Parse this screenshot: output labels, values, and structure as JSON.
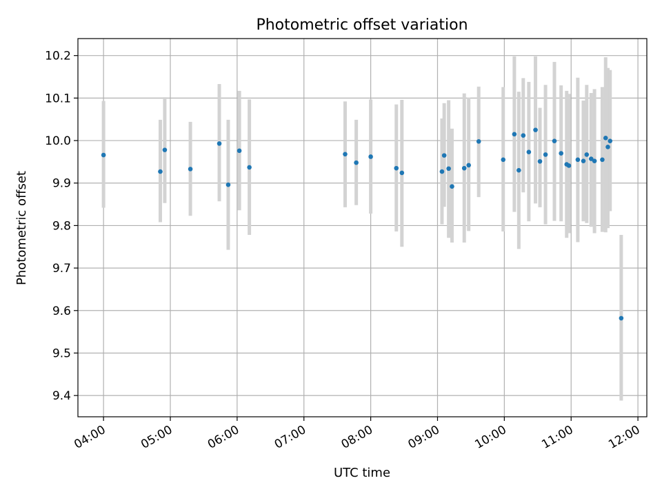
{
  "chart_data": {
    "type": "scatter",
    "title": "Photometric offset variation",
    "xlabel": "UTC time",
    "ylabel": "Photometric offset",
    "x_tick_labels": [
      "04:00",
      "05:00",
      "06:00",
      "07:00",
      "08:00",
      "09:00",
      "10:00",
      "11:00",
      "12:00"
    ],
    "y_tick_labels": [
      "9.4",
      "9.5",
      "9.6",
      "9.7",
      "9.8",
      "9.9",
      "10.0",
      "10.1",
      "10.2"
    ],
    "xlim": [
      "03:37",
      "12:08"
    ],
    "ylim": [
      9.35,
      10.24
    ],
    "grid": true,
    "colors": {
      "points": "#1f77b4",
      "error_bars": "#d3d3d3",
      "grid": "#b0b0b0"
    },
    "series": [
      {
        "x": [
          "04:00",
          "04:51",
          "04:55",
          "05:18",
          "05:44",
          "05:52",
          "06:02",
          "06:11",
          "07:37",
          "07:47",
          "08:00",
          "08:23",
          "08:28",
          "09:04",
          "09:06",
          "09:10",
          "09:13",
          "09:24",
          "09:28",
          "09:37",
          "09:59",
          "10:09",
          "10:13",
          "10:17",
          "10:22",
          "10:28",
          "10:32",
          "10:37",
          "10:45",
          "10:51",
          "10:56",
          "10:58",
          "11:06",
          "11:11",
          "11:14",
          "11:18",
          "11:21",
          "11:28",
          "11:31",
          "11:33",
          "11:35",
          "11:45"
        ],
        "y": [
          9.966,
          9.927,
          9.978,
          9.933,
          9.993,
          9.896,
          9.976,
          9.937,
          9.968,
          9.948,
          9.962,
          9.935,
          9.924,
          9.927,
          9.965,
          9.934,
          9.892,
          9.935,
          9.942,
          9.998,
          9.955,
          10.015,
          9.93,
          10.012,
          9.973,
          10.025,
          9.951,
          9.967,
          9.999,
          9.97,
          9.944,
          9.941,
          9.955,
          9.952,
          9.967,
          9.957,
          9.952,
          9.955,
          10.006,
          9.985,
          9.999,
          9.582
        ],
        "err_low": [
          9.842,
          9.808,
          9.853,
          9.823,
          9.857,
          9.743,
          9.836,
          9.778,
          9.843,
          9.848,
          9.828,
          9.786,
          9.75,
          9.803,
          9.844,
          9.771,
          9.76,
          9.76,
          9.787,
          9.867,
          9.786,
          9.832,
          9.745,
          9.878,
          9.81,
          9.852,
          9.843,
          9.803,
          9.811,
          9.81,
          9.771,
          9.782,
          9.761,
          9.81,
          9.806,
          9.797,
          9.782,
          9.785,
          9.784,
          9.794,
          9.834,
          9.388
        ],
        "err_high": [
          10.093,
          10.049,
          10.102,
          10.044,
          10.133,
          10.049,
          10.117,
          10.097,
          10.092,
          10.049,
          10.097,
          10.085,
          10.096,
          10.052,
          10.088,
          10.095,
          10.028,
          10.111,
          10.101,
          10.127,
          10.126,
          10.198,
          10.115,
          10.147,
          10.138,
          10.198,
          10.077,
          10.131,
          10.185,
          10.13,
          10.117,
          10.11,
          10.148,
          10.094,
          10.131,
          10.112,
          10.121,
          10.126,
          10.196,
          10.171,
          10.166,
          9.778
        ]
      }
    ]
  }
}
